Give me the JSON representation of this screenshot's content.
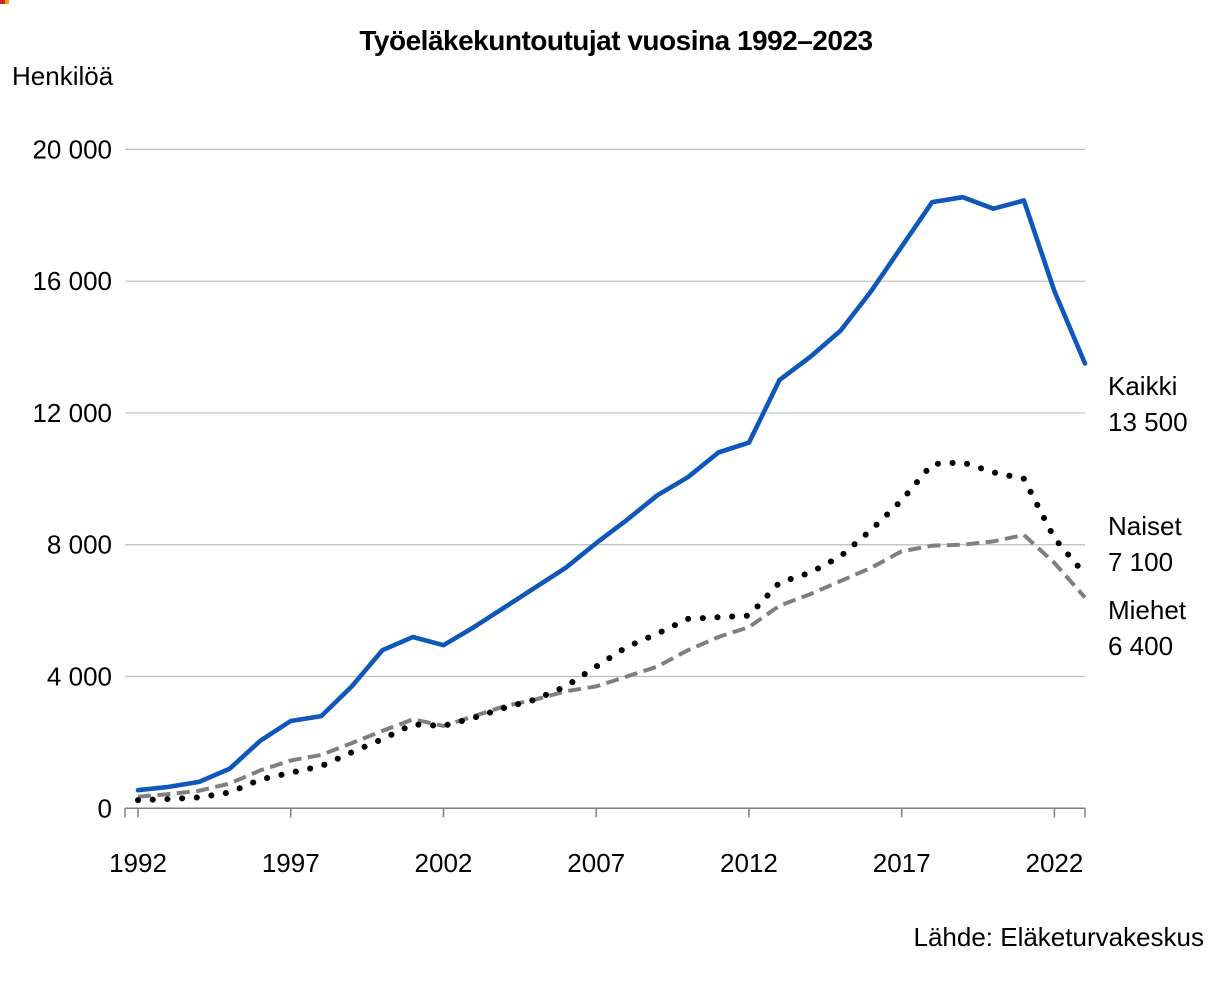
{
  "title": "Työeläkekuntoutujat vuosina 1992–2023",
  "y_axis_unit_label": "Henkilöä",
  "source": "Lähde: Eläketurvakeskus",
  "series_end_labels": [
    {
      "name": "Kaikki",
      "value": "13 500"
    },
    {
      "name": "Naiset",
      "value": "7 100"
    },
    {
      "name": "Miehet",
      "value": "6 400"
    }
  ],
  "artifact_note": "small red-orange mark at top-left corner",
  "chart_data": {
    "type": "line",
    "title": "Työeläkekuntoutujat vuosina 1992–2023",
    "xlabel": "",
    "ylabel": "Henkilöä",
    "x": [
      1992,
      1993,
      1994,
      1995,
      1996,
      1997,
      1998,
      1999,
      2000,
      2001,
      2002,
      2003,
      2004,
      2005,
      2006,
      2007,
      2008,
      2009,
      2010,
      2011,
      2012,
      2013,
      2014,
      2015,
      2016,
      2017,
      2018,
      2019,
      2020,
      2021,
      2022,
      2023
    ],
    "series": [
      {
        "name": "Kaikki",
        "style": "solid",
        "color": "#0F57B8",
        "end_value_label": "13 500",
        "values": [
          550,
          650,
          800,
          1200,
          2050,
          2650,
          2800,
          3700,
          4800,
          5200,
          4950,
          5500,
          6100,
          6700,
          7300,
          8050,
          8750,
          9500,
          10050,
          10800,
          11100,
          13000,
          13700,
          14500,
          15700,
          17050,
          18400,
          18550,
          18200,
          18450,
          15700,
          13500
        ]
      },
      {
        "name": "Naiset",
        "style": "dotted",
        "color": "#000000",
        "end_value_label": "7 100",
        "values": [
          250,
          280,
          330,
          480,
          870,
          1080,
          1280,
          1700,
          2100,
          2550,
          2500,
          2750,
          3050,
          3300,
          3700,
          4300,
          4900,
          5300,
          5750,
          5800,
          5850,
          6850,
          7150,
          7650,
          8450,
          9350,
          10450,
          10500,
          10200,
          10000,
          8200,
          7100
        ]
      },
      {
        "name": "Miehet",
        "style": "dashed",
        "color": "#7F7F7F",
        "end_value_label": "6 400",
        "values": [
          350,
          430,
          530,
          750,
          1150,
          1450,
          1620,
          1980,
          2350,
          2700,
          2500,
          2800,
          3100,
          3300,
          3550,
          3700,
          4000,
          4300,
          4800,
          5200,
          5500,
          6150,
          6500,
          6900,
          7300,
          7800,
          7970,
          8000,
          8100,
          8300,
          7450,
          6400
        ]
      }
    ],
    "x_ticks": [
      1992,
      1997,
      2002,
      2007,
      2012,
      2017,
      2022
    ],
    "y_ticks": [
      0,
      4000,
      8000,
      12000,
      16000,
      20000
    ],
    "y_tick_labels": [
      "0",
      "4 000",
      "8 000",
      "12 000",
      "16 000",
      "20 000"
    ],
    "ylim": [
      0,
      20000
    ],
    "xlim": [
      1992,
      2023
    ],
    "grid": "horizontal",
    "legend_position": "right-end-labels",
    "gridline_color": "#BDBDBD",
    "axis_color": "#7F7F7F"
  }
}
